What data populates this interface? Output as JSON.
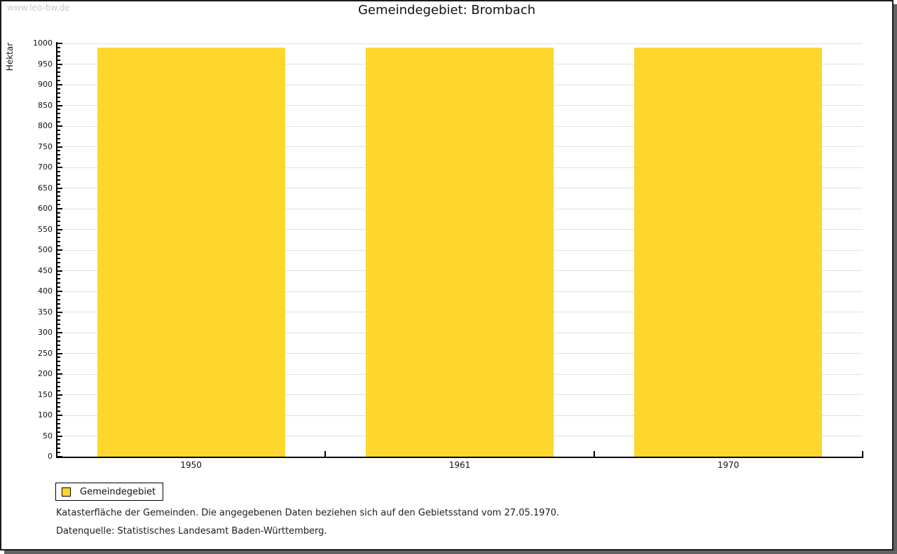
{
  "watermark": "www.leo-bw.de",
  "title": "Gemeindegebiet: Brombach",
  "legend": {
    "label": "Gemeindegebiet",
    "swatch": "yellow-square-swatch"
  },
  "captions": {
    "line1": "Katasterfläche der Gemeinden. Die angegebenen Daten beziehen sich auf den Gebietsstand vom 27.05.1970.",
    "line2": "Datenquelle: Statistisches Landesamt Baden-Württemberg."
  },
  "chart_data": {
    "type": "bar",
    "title": "Gemeindegebiet: Brombach",
    "categories": [
      "1950",
      "1961",
      "1970"
    ],
    "series": [
      {
        "name": "Gemeindegebiet",
        "values": [
          990,
          990,
          990
        ]
      }
    ],
    "xlabel": "",
    "ylabel": "Hektar",
    "ylim": [
      0,
      1000
    ],
    "ytick_major_step": 50,
    "ytick_minor_step": 10,
    "grid": true,
    "legend_position": "bottom-left",
    "colors": {
      "bar": "#FDD62E",
      "gridline": "#E0E0E0",
      "axis": "#000000",
      "watermark": "#C9C9C9",
      "frame_shadow": "#636363"
    }
  }
}
